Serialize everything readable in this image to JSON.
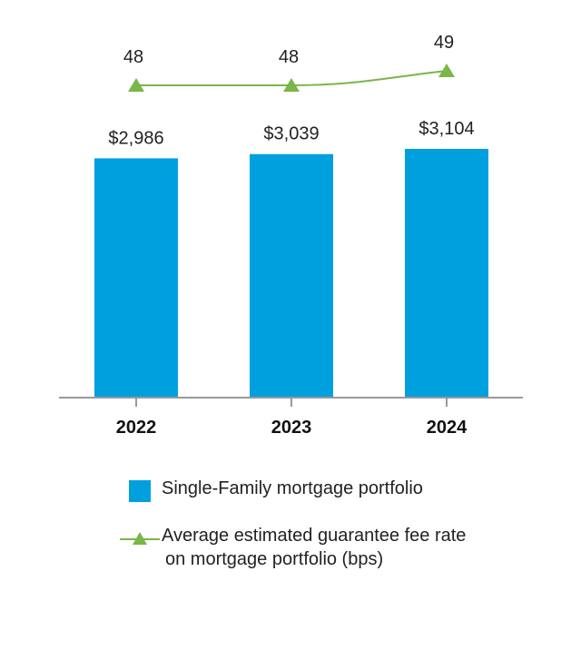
{
  "chart_data": {
    "type": "bar",
    "categories": [
      "2022",
      "2023",
      "2024"
    ],
    "series": [
      {
        "name": "Single-Family mortgage portfolio",
        "kind": "bar",
        "values": [
          2986,
          3039,
          3104
        ],
        "labels": [
          "$2,986",
          "$3,039",
          "$3,104"
        ],
        "color": "#00a0df"
      },
      {
        "name": "Average estimated guarantee fee rate on mortgage portfolio (bps)",
        "kind": "line",
        "values": [
          48,
          48,
          49
        ],
        "labels": [
          "48",
          "48",
          "49"
        ],
        "color": "#7ab648",
        "marker": "triangle"
      }
    ],
    "ylim": [
      0,
      3200
    ],
    "line_ylim": [
      47,
      49.3
    ],
    "grid": false,
    "legend_placement": "bottom"
  },
  "legend": {
    "bar_label": "Single-Family mortgage portfolio",
    "line_label_1": "Average estimated guarantee fee rate",
    "line_label_2": "on mortgage portfolio (bps)"
  }
}
